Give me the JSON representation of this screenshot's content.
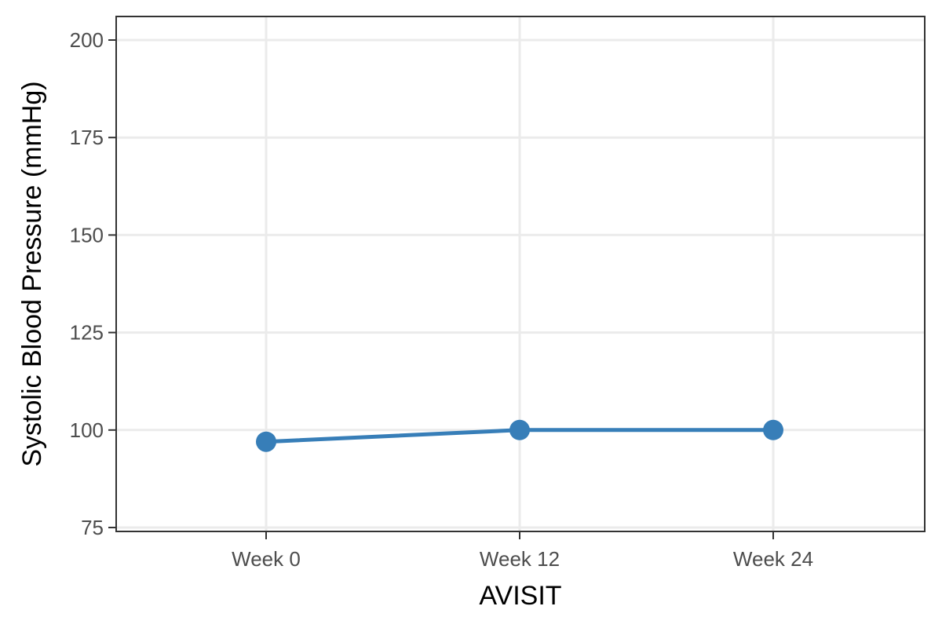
{
  "chart_data": {
    "type": "line",
    "title": "",
    "xlabel": "AVISIT",
    "ylabel": "Systolic Blood Pressure (mmHg)",
    "categories": [
      "Week 0",
      "Week 12",
      "Week 24"
    ],
    "series": [
      {
        "values": [
          97,
          100,
          100
        ]
      }
    ],
    "ylim": [
      75,
      200
    ],
    "yticks": [
      75,
      100,
      125,
      150,
      175,
      200
    ],
    "grid": true,
    "legend": "none",
    "colors": {
      "line": "#377eb8",
      "grid": "#ebebeb",
      "panel_border": "#333333",
      "tick_text": "#4d4d4d"
    }
  }
}
